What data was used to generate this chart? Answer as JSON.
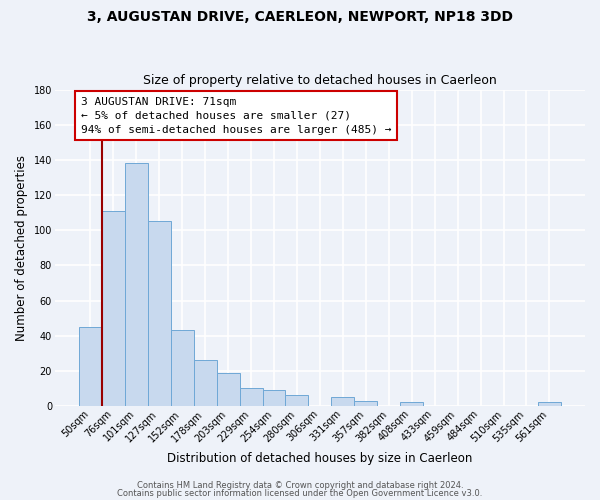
{
  "title": "3, AUGUSTAN DRIVE, CAERLEON, NEWPORT, NP18 3DD",
  "subtitle": "Size of property relative to detached houses in Caerleon",
  "xlabel": "Distribution of detached houses by size in Caerleon",
  "ylabel": "Number of detached properties",
  "categories": [
    "50sqm",
    "76sqm",
    "101sqm",
    "127sqm",
    "152sqm",
    "178sqm",
    "203sqm",
    "229sqm",
    "254sqm",
    "280sqm",
    "306sqm",
    "331sqm",
    "357sqm",
    "382sqm",
    "408sqm",
    "433sqm",
    "459sqm",
    "484sqm",
    "510sqm",
    "535sqm",
    "561sqm"
  ],
  "values": [
    45,
    111,
    138,
    105,
    43,
    26,
    19,
    10,
    9,
    6,
    0,
    5,
    3,
    0,
    2,
    0,
    0,
    0,
    0,
    0,
    2
  ],
  "bar_color": "#c8d9ee",
  "bar_edge_color": "#6fa8d6",
  "annotation_title": "3 AUGUSTAN DRIVE: 71sqm",
  "annotation_line1": "← 5% of detached houses are smaller (27)",
  "annotation_line2": "94% of semi-detached houses are larger (485) →",
  "annotation_box_color": "white",
  "annotation_box_edge_color": "#cc0000",
  "ylim": [
    0,
    180
  ],
  "yticks": [
    0,
    20,
    40,
    60,
    80,
    100,
    120,
    140,
    160,
    180
  ],
  "footer_line1": "Contains HM Land Registry data © Crown copyright and database right 2024.",
  "footer_line2": "Contains public sector information licensed under the Open Government Licence v3.0.",
  "bg_color": "#eef2f9",
  "grid_color": "white",
  "red_line_color": "#990000",
  "title_fontsize": 10,
  "subtitle_fontsize": 9,
  "ylabel_fontsize": 8.5,
  "xlabel_fontsize": 8.5,
  "tick_fontsize": 7,
  "annotation_fontsize": 8,
  "footer_fontsize": 6
}
